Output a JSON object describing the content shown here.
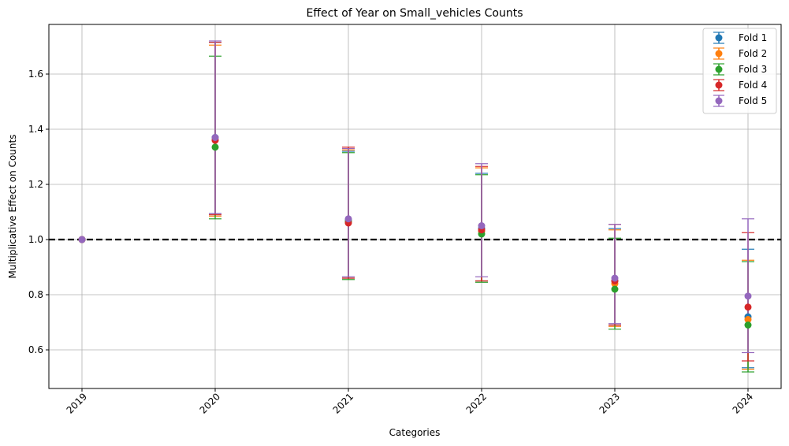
{
  "chart_data": {
    "type": "scatter",
    "title": "Effect of Year on Small_vehicles Counts",
    "xlabel": "Categories",
    "ylabel": "Multiplicative Effect on Counts",
    "categories": [
      "2019",
      "2020",
      "2021",
      "2022",
      "2023",
      "2024"
    ],
    "ylim": [
      0.46,
      1.78
    ],
    "yticks": [
      0.6,
      0.8,
      1.0,
      1.2,
      1.4,
      1.6
    ],
    "ytick_labels": [
      "0.6",
      "0.8",
      "1.0",
      "1.2",
      "1.4",
      "1.6"
    ],
    "grid": true,
    "reference_line": 1.0,
    "legend_position": "top-right",
    "series": [
      {
        "name": "Fold 1",
        "color": "#1f77b4",
        "values": [
          1.0,
          1.37,
          1.07,
          1.04,
          0.85,
          0.72
        ],
        "lower": [
          1.0,
          1.09,
          0.86,
          0.85,
          0.69,
          0.535
        ],
        "upper": [
          1.0,
          1.715,
          1.32,
          1.24,
          1.04,
          0.965
        ]
      },
      {
        "name": "Fold 2",
        "color": "#ff7f0e",
        "values": [
          1.0,
          1.36,
          1.065,
          1.03,
          0.84,
          0.71
        ],
        "lower": [
          1.0,
          1.085,
          0.86,
          0.85,
          0.685,
          0.53
        ],
        "upper": [
          1.0,
          1.705,
          1.325,
          1.26,
          1.035,
          0.925
        ]
      },
      {
        "name": "Fold 3",
        "color": "#2ca02c",
        "values": [
          1.0,
          1.335,
          1.065,
          1.02,
          0.82,
          0.69
        ],
        "lower": [
          1.0,
          1.075,
          0.855,
          0.845,
          0.675,
          0.52
        ],
        "upper": [
          1.0,
          1.665,
          1.315,
          1.235,
          1.005,
          0.92
        ]
      },
      {
        "name": "Fold 4",
        "color": "#d62728",
        "values": [
          1.0,
          1.36,
          1.06,
          1.035,
          0.85,
          0.755
        ],
        "lower": [
          1.0,
          1.09,
          0.86,
          0.85,
          0.69,
          0.56
        ],
        "upper": [
          1.0,
          1.715,
          1.335,
          1.265,
          1.055,
          1.025
        ]
      },
      {
        "name": "Fold 5",
        "color": "#9467bd",
        "values": [
          1.0,
          1.37,
          1.075,
          1.05,
          0.86,
          0.795
        ],
        "lower": [
          1.0,
          1.095,
          0.865,
          0.865,
          0.695,
          0.59
        ],
        "upper": [
          1.0,
          1.72,
          1.33,
          1.275,
          1.055,
          1.075
        ]
      }
    ]
  }
}
